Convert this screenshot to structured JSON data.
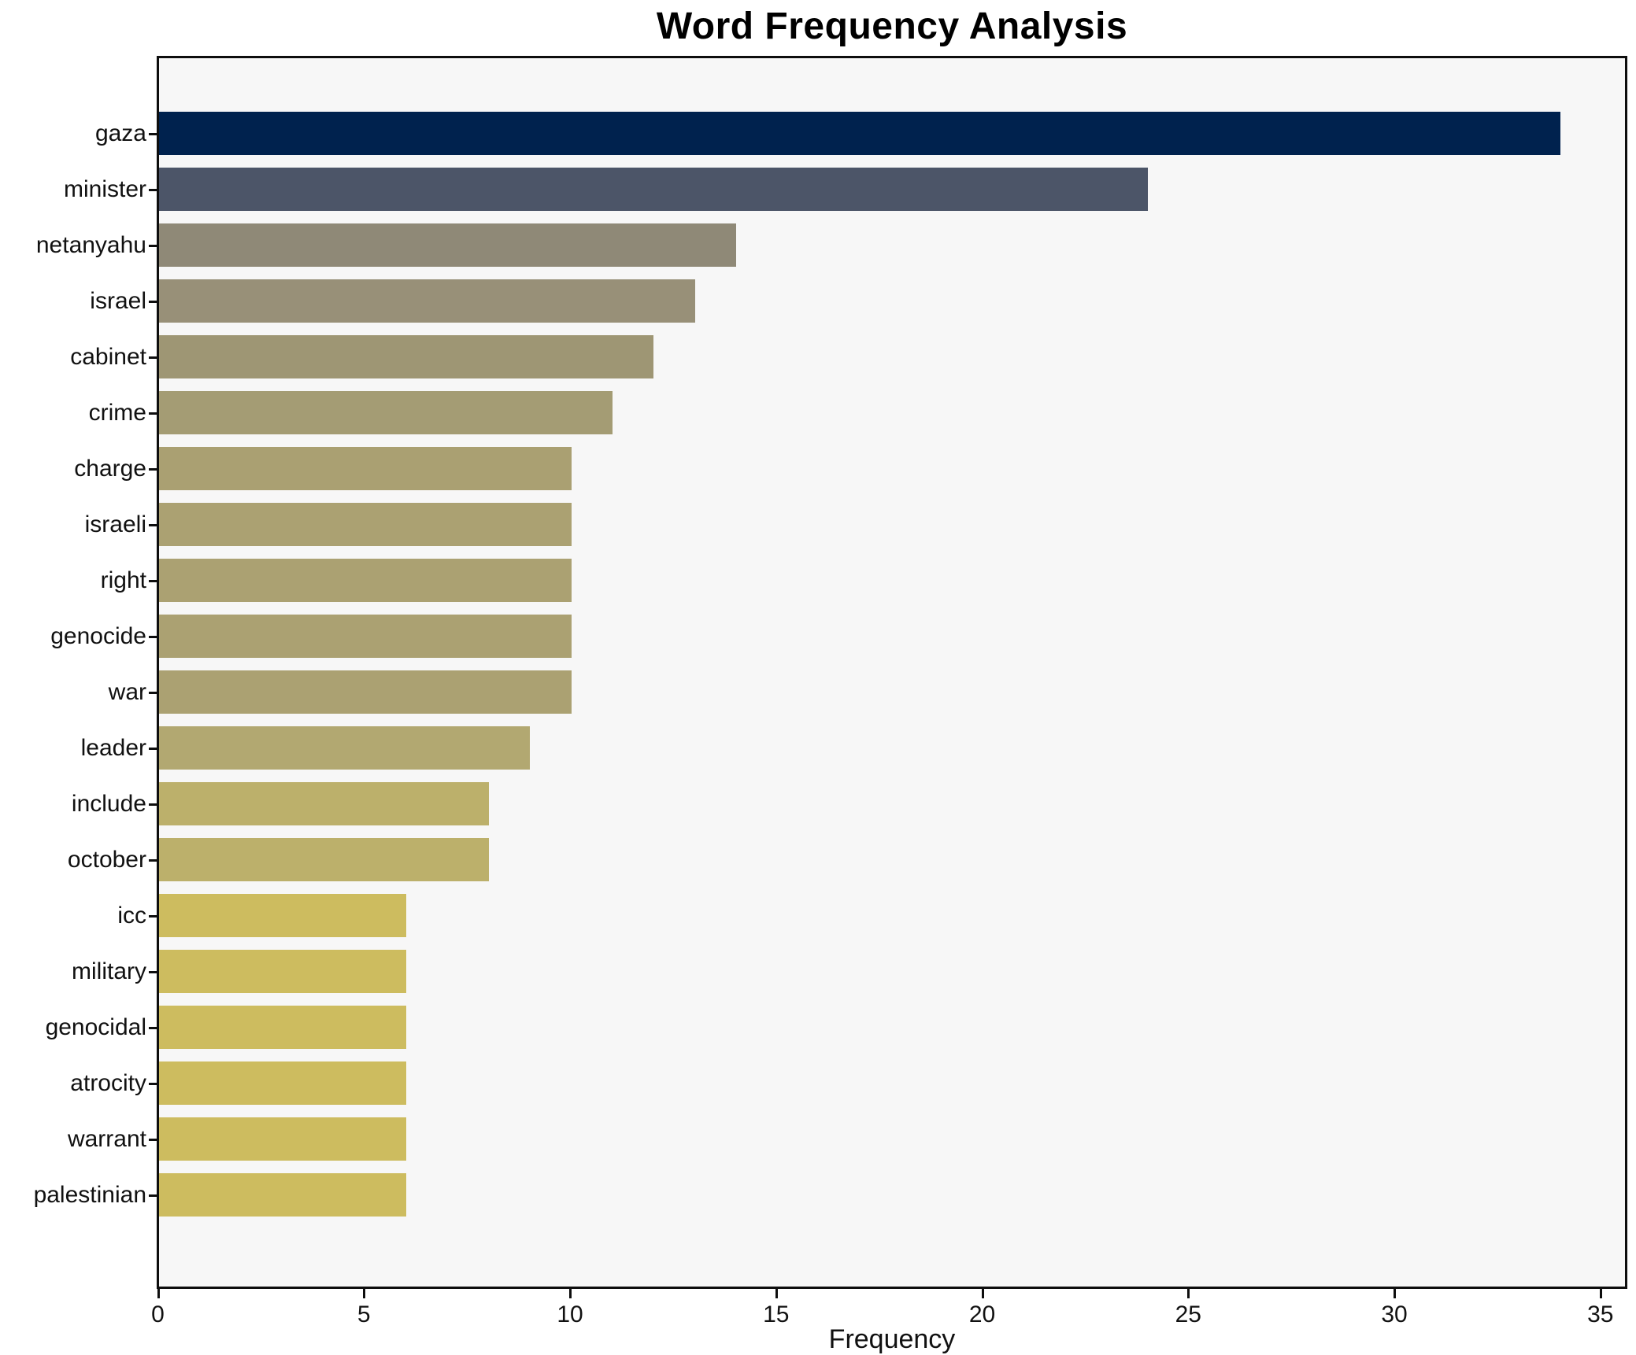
{
  "title": "Word Frequency Analysis",
  "chart_data": {
    "type": "bar",
    "orientation": "horizontal",
    "title": "Word Frequency Analysis",
    "xlabel": "Frequency",
    "ylabel": "",
    "categories": [
      "gaza",
      "minister",
      "netanyahu",
      "israel",
      "cabinet",
      "crime",
      "charge",
      "israeli",
      "right",
      "genocide",
      "war",
      "leader",
      "include",
      "october",
      "icc",
      "military",
      "genocidal",
      "atrocity",
      "warrant",
      "palestinian"
    ],
    "values": [
      34,
      24,
      14,
      13,
      12,
      11,
      10,
      10,
      10,
      10,
      10,
      9,
      8,
      8,
      6,
      6,
      6,
      6,
      6,
      6
    ],
    "bar_colors": [
      "#00224e",
      "#4c5568",
      "#8f8977",
      "#989078",
      "#9e9674",
      "#a49c74",
      "#aaa072",
      "#aba172",
      "#aba172",
      "#aba172",
      "#aba172",
      "#b2a871",
      "#bcb06b",
      "#bcb06b",
      "#cdbc5f",
      "#cdbc5f",
      "#cdbc5f",
      "#cdbc5f",
      "#cdbc5f",
      "#cdbc5f"
    ],
    "x_ticks": [
      0,
      5,
      10,
      15,
      20,
      25,
      30,
      35
    ],
    "xlim": [
      0,
      35.65
    ],
    "grid": false,
    "legend": "none",
    "plot_background": "#f7f7f7",
    "figure_background": "#ffffff",
    "spine_color": "#0e0e0e",
    "text_color": "#111111"
  }
}
